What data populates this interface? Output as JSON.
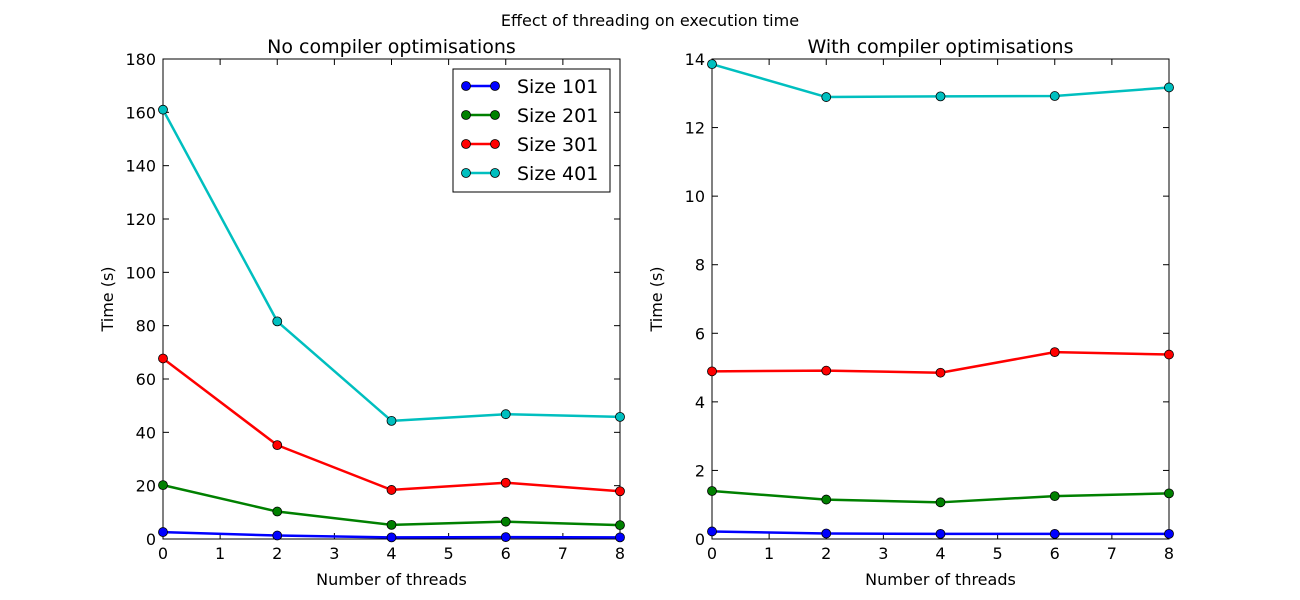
{
  "figure": {
    "suptitle": "Effect of threading on execution time"
  },
  "chart_data": [
    {
      "type": "line",
      "title": "No compiler optimisations",
      "xlabel": "Number of threads",
      "ylabel": "Time (s)",
      "xlim": [
        0,
        8
      ],
      "ylim": [
        0,
        180
      ],
      "xticks": [
        0,
        1,
        2,
        3,
        4,
        5,
        6,
        7,
        8
      ],
      "yticks": [
        0,
        20,
        40,
        60,
        80,
        100,
        120,
        140,
        160,
        180
      ],
      "grid": false,
      "legend": "top-right",
      "x": [
        0,
        2,
        4,
        6,
        8
      ],
      "series": [
        {
          "name": "Size 101",
          "color": "#0000ff",
          "values": [
            2.6,
            1.3,
            0.6,
            0.7,
            0.6
          ]
        },
        {
          "name": "Size 201",
          "color": "#008000",
          "values": [
            20.2,
            10.3,
            5.3,
            6.5,
            5.2
          ]
        },
        {
          "name": "Size 301",
          "color": "#ff0000",
          "values": [
            67.7,
            35.2,
            18.4,
            21.1,
            17.9
          ]
        },
        {
          "name": "Size 401",
          "color": "#00bfbf",
          "values": [
            161.0,
            81.6,
            44.3,
            46.8,
            45.8
          ]
        }
      ]
    },
    {
      "type": "line",
      "title": "With compiler optimisations",
      "xlabel": "Number of threads",
      "ylabel": "Time (s)",
      "xlim": [
        0,
        8
      ],
      "ylim": [
        0,
        14
      ],
      "xticks": [
        0,
        1,
        2,
        3,
        4,
        5,
        6,
        7,
        8
      ],
      "yticks": [
        0,
        2,
        4,
        6,
        8,
        10,
        12,
        14
      ],
      "grid": false,
      "x": [
        0,
        2,
        4,
        6,
        8
      ],
      "series": [
        {
          "color": "#0000ff",
          "values": [
            0.22,
            0.16,
            0.15,
            0.15,
            0.15
          ]
        },
        {
          "color": "#008000",
          "values": [
            1.4,
            1.15,
            1.07,
            1.25,
            1.33
          ]
        },
        {
          "color": "#ff0000",
          "values": [
            4.89,
            4.91,
            4.85,
            5.45,
            5.38
          ]
        },
        {
          "color": "#00bfbf",
          "values": [
            13.85,
            12.89,
            12.91,
            12.92,
            13.17
          ]
        }
      ]
    }
  ]
}
